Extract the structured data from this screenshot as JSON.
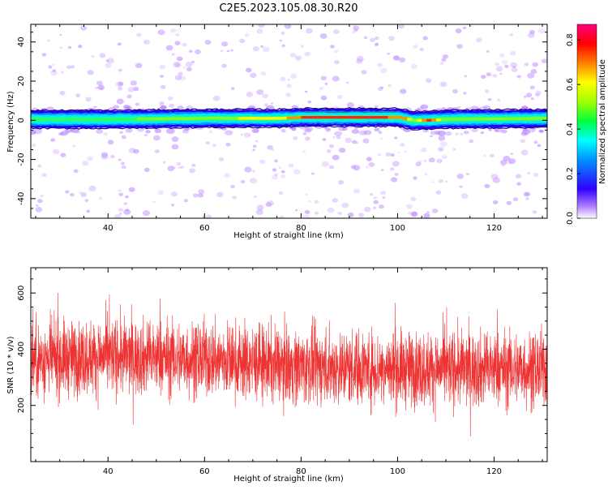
{
  "figure_title": "C2E5.2023.105.08.30.R20",
  "chart_data": [
    {
      "type": "heatmap",
      "xlabel": "Height of straight line (km)",
      "ylabel": "Frequency (Hz)",
      "xlim": [
        24,
        131
      ],
      "ylim": [
        -50,
        49
      ],
      "xticks": [
        40,
        60,
        80,
        100,
        120
      ],
      "yticks": [
        -40,
        -20,
        0,
        20,
        40
      ],
      "colorbar": {
        "label": "Normalized spectral amplitude",
        "range": [
          0.0,
          0.87
        ],
        "ticks": [
          0.0,
          0.2,
          0.4,
          0.6,
          0.8
        ],
        "tick_labels": [
          "0.0",
          "0.2",
          "0.4",
          "0.6",
          "0.8"
        ],
        "colormap": [
          "#ffffff",
          "#8000ff",
          "#0000ff",
          "#00ffff",
          "#00ff00",
          "#ffff00",
          "#ff8000",
          "#ff0000",
          "#ff0080"
        ]
      },
      "band": [
        {
          "height_km": 24,
          "center_hz": 0.5,
          "peak": 0.45
        },
        {
          "height_km": 40,
          "center_hz": 0.5,
          "peak": 0.48
        },
        {
          "height_km": 60,
          "center_hz": 1.0,
          "peak": 0.55
        },
        {
          "height_km": 75,
          "center_hz": 1.0,
          "peak": 0.62
        },
        {
          "height_km": 80,
          "center_hz": 1.5,
          "peak": 0.75
        },
        {
          "height_km": 85,
          "center_hz": 1.5,
          "peak": 0.8
        },
        {
          "height_km": 95,
          "center_hz": 1.5,
          "peak": 0.8
        },
        {
          "height_km": 100,
          "center_hz": 1.5,
          "peak": 0.7
        },
        {
          "height_km": 103,
          "center_hz": 0.0,
          "peak": 0.55
        },
        {
          "height_km": 106,
          "center_hz": 0.0,
          "peak": 0.78
        },
        {
          "height_km": 110,
          "center_hz": 0.5,
          "peak": 0.5
        },
        {
          "height_km": 131,
          "center_hz": 1.0,
          "peak": 0.5
        }
      ]
    },
    {
      "type": "line",
      "xlabel": "Height of straight line (km)",
      "ylabel": "SNR (10 * v/v)",
      "xlim": [
        24,
        131
      ],
      "ylim": [
        0,
        690
      ],
      "xticks": [
        40,
        60,
        80,
        100,
        120
      ],
      "yticks": [
        200,
        400,
        600
      ],
      "color": "#ee3333",
      "mean_snr": [
        {
          "height_km": 24,
          "value": 360
        },
        {
          "height_km": 40,
          "value": 375
        },
        {
          "height_km": 60,
          "value": 365
        },
        {
          "height_km": 80,
          "value": 340
        },
        {
          "height_km": 100,
          "value": 330
        },
        {
          "height_km": 120,
          "value": 330
        },
        {
          "height_km": 131,
          "value": 330
        }
      ],
      "noise_amplitude": 120,
      "extremes": {
        "max": 680,
        "min": 0
      }
    }
  ]
}
